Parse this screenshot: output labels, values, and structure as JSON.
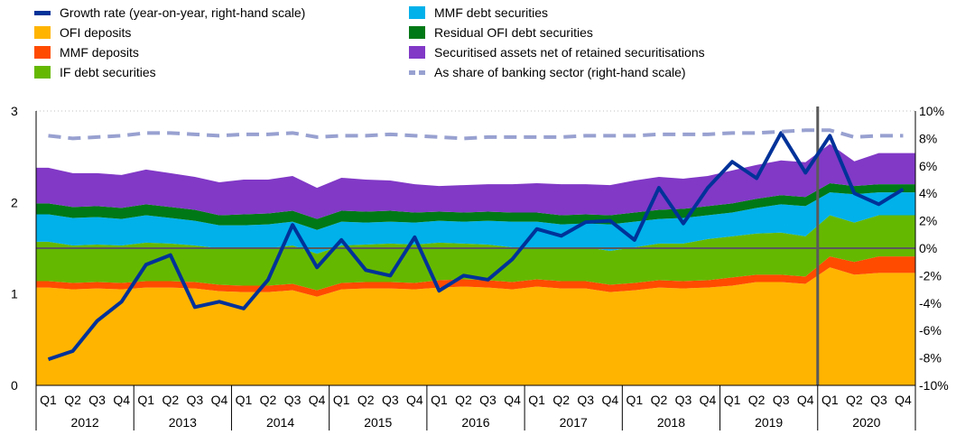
{
  "chart_data": {
    "type": "area",
    "title": "",
    "left_axis": {
      "ylim": [
        0,
        3
      ],
      "ticks": [
        "0",
        "1",
        "2",
        "3"
      ]
    },
    "right_axis": {
      "ylim": [
        -10,
        10
      ],
      "ticks": [
        "-10%",
        "-8%",
        "-6%",
        "-4%",
        "-2%",
        "0%",
        "2%",
        "4%",
        "6%",
        "8%",
        "10%"
      ]
    },
    "quarters": [
      "Q1",
      "Q2",
      "Q3",
      "Q4",
      "Q1",
      "Q2",
      "Q3",
      "Q4",
      "Q1",
      "Q2",
      "Q3",
      "Q4",
      "Q1",
      "Q2",
      "Q3",
      "Q4",
      "Q1",
      "Q2",
      "Q3",
      "Q4",
      "Q1",
      "Q2",
      "Q3",
      "Q4",
      "Q1",
      "Q2",
      "Q3",
      "Q4",
      "Q1",
      "Q2",
      "Q3",
      "Q4",
      "Q1",
      "Q2",
      "Q3",
      "Q4"
    ],
    "years": [
      "2012",
      "2013",
      "2014",
      "2015",
      "2016",
      "2017",
      "2018",
      "2019",
      "2020"
    ],
    "legend": [
      {
        "label": "Growth rate (year-on-year, right-hand scale)",
        "color": "#003299",
        "kind": "line"
      },
      {
        "label": "MMF debt securities",
        "color": "#00B1EA",
        "kind": "box"
      },
      {
        "label": "OFI deposits",
        "color": "#FFB400",
        "kind": "box"
      },
      {
        "label": "Residual OFI debt securities",
        "color": "#007816",
        "kind": "box"
      },
      {
        "label": "MMF deposits",
        "color": "#FF4B00",
        "kind": "box"
      },
      {
        "label": "Securitised assets net of retained securitisations",
        "color": "#8139C6",
        "kind": "box"
      },
      {
        "label": "IF debt securities",
        "color": "#65B800",
        "kind": "box"
      },
      {
        "label": "As share of banking sector (right-hand scale)",
        "color": "#98A1D0",
        "kind": "dash"
      }
    ],
    "stacked_series": [
      {
        "name": "OFI deposits",
        "color": "#FFB400",
        "values": [
          1.07,
          1.05,
          1.06,
          1.05,
          1.07,
          1.07,
          1.06,
          1.03,
          1.02,
          1.02,
          1.04,
          0.97,
          1.05,
          1.06,
          1.06,
          1.05,
          1.07,
          1.08,
          1.07,
          1.05,
          1.08,
          1.06,
          1.06,
          1.02,
          1.04,
          1.07,
          1.06,
          1.07,
          1.09,
          1.13,
          1.13,
          1.11,
          1.29,
          1.21,
          1.23,
          1.23
        ]
      },
      {
        "name": "MMF deposits",
        "color": "#FF4B00",
        "values": [
          0.07,
          0.07,
          0.07,
          0.07,
          0.07,
          0.07,
          0.07,
          0.07,
          0.07,
          0.07,
          0.07,
          0.07,
          0.07,
          0.07,
          0.07,
          0.07,
          0.08,
          0.08,
          0.08,
          0.08,
          0.08,
          0.08,
          0.08,
          0.08,
          0.08,
          0.08,
          0.08,
          0.08,
          0.09,
          0.08,
          0.08,
          0.08,
          0.12,
          0.14,
          0.18,
          0.18
        ]
      },
      {
        "name": "IF debt securities",
        "color": "#65B800",
        "values": [
          0.43,
          0.41,
          0.41,
          0.41,
          0.42,
          0.41,
          0.4,
          0.4,
          0.4,
          0.41,
          0.42,
          0.4,
          0.41,
          0.41,
          0.42,
          0.42,
          0.41,
          0.39,
          0.39,
          0.38,
          0.35,
          0.36,
          0.37,
          0.37,
          0.39,
          0.4,
          0.41,
          0.45,
          0.45,
          0.45,
          0.46,
          0.44,
          0.45,
          0.43,
          0.45,
          0.45
        ]
      },
      {
        "name": "MMF debt securities",
        "color": "#00B1EA",
        "values": [
          0.3,
          0.3,
          0.3,
          0.29,
          0.3,
          0.28,
          0.27,
          0.25,
          0.26,
          0.26,
          0.26,
          0.26,
          0.26,
          0.24,
          0.24,
          0.24,
          0.24,
          0.24,
          0.26,
          0.28,
          0.28,
          0.26,
          0.26,
          0.29,
          0.28,
          0.27,
          0.28,
          0.26,
          0.26,
          0.28,
          0.31,
          0.33,
          0.25,
          0.31,
          0.25,
          0.25
        ]
      },
      {
        "name": "Residual OFI debt securities",
        "color": "#007816",
        "values": [
          0.12,
          0.12,
          0.12,
          0.12,
          0.12,
          0.12,
          0.12,
          0.11,
          0.12,
          0.12,
          0.12,
          0.12,
          0.12,
          0.12,
          0.12,
          0.11,
          0.1,
          0.1,
          0.1,
          0.1,
          0.1,
          0.1,
          0.1,
          0.1,
          0.1,
          0.1,
          0.1,
          0.1,
          0.1,
          0.1,
          0.1,
          0.1,
          0.1,
          0.09,
          0.09,
          0.09
        ]
      },
      {
        "name": "Securitised assets net of retained securitisations",
        "color": "#8139C6",
        "values": [
          0.39,
          0.37,
          0.36,
          0.36,
          0.38,
          0.37,
          0.36,
          0.36,
          0.38,
          0.37,
          0.38,
          0.34,
          0.36,
          0.35,
          0.33,
          0.31,
          0.28,
          0.3,
          0.3,
          0.31,
          0.32,
          0.34,
          0.33,
          0.33,
          0.35,
          0.36,
          0.33,
          0.33,
          0.36,
          0.37,
          0.38,
          0.38,
          0.43,
          0.27,
          0.34,
          0.34
        ]
      }
    ],
    "line_series": [
      {
        "name": "Growth rate (year-on-year, right-hand scale)",
        "color": "#003299",
        "axis": "right",
        "values": [
          -8.1,
          -7.5,
          -5.3,
          -3.9,
          -1.2,
          -0.5,
          -4.3,
          -3.9,
          -4.4,
          -2.3,
          1.7,
          -1.4,
          0.6,
          -1.6,
          -2.0,
          0.8,
          -3.1,
          -2.0,
          -2.3,
          -0.8,
          1.4,
          0.9,
          1.9,
          2.0,
          0.6,
          4.4,
          1.8,
          4.4,
          6.3,
          5.1,
          8.4,
          5.5,
          8.2,
          4.0,
          3.2,
          4.3
        ]
      },
      {
        "name": "As share of banking sector (right-hand scale)",
        "color": "#98A1D0",
        "axis": "right",
        "dashed": true,
        "values": [
          8.2,
          8.0,
          8.1,
          8.2,
          8.4,
          8.4,
          8.3,
          8.2,
          8.3,
          8.3,
          8.4,
          8.1,
          8.2,
          8.2,
          8.3,
          8.2,
          8.1,
          8.0,
          8.1,
          8.1,
          8.1,
          8.1,
          8.2,
          8.2,
          8.2,
          8.3,
          8.3,
          8.3,
          8.4,
          8.4,
          8.5,
          8.6,
          8.6,
          8.1,
          8.2,
          8.2
        ]
      }
    ],
    "zero_line_right": 0,
    "marker_quarter_index": 32,
    "grid": true,
    "legend_position": "top"
  }
}
